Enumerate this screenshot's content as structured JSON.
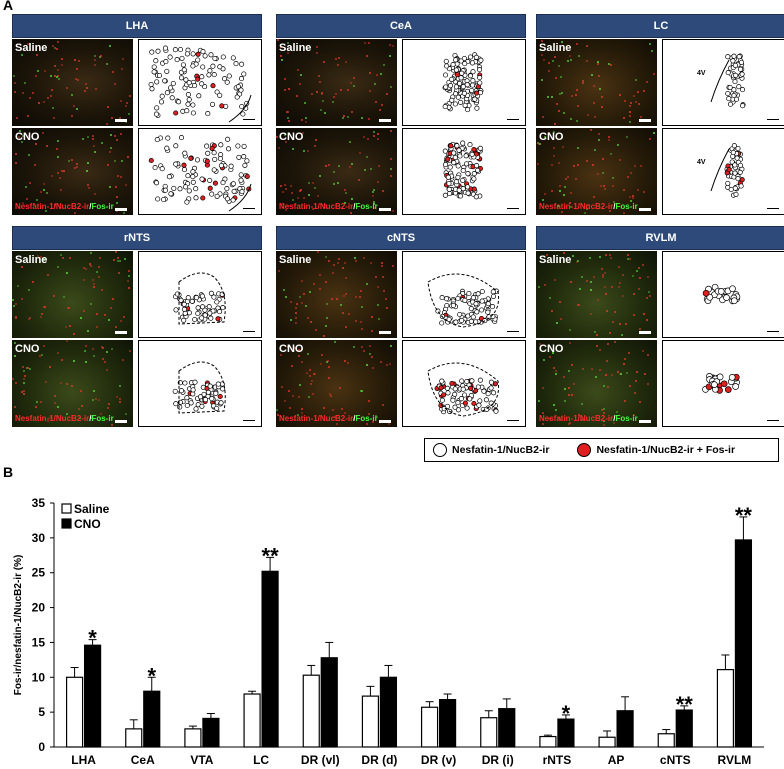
{
  "panel_a": {
    "letter": "A",
    "regions": [
      {
        "name": "LHA",
        "conditions": [
          "Saline",
          "CNO"
        ],
        "stain": {
          "part1": "Nesfatin-1/NucB2-ir",
          "sep": "/",
          "part2": "Fos-ir"
        }
      },
      {
        "name": "CeA",
        "conditions": [
          "Saline",
          "CNO"
        ],
        "stain": {
          "part1": "Nesfatin-1/NucB2-ir",
          "sep": "/",
          "part2": "Fos-ir"
        }
      },
      {
        "name": "LC",
        "conditions": [
          "Saline",
          "CNO"
        ],
        "stain": {
          "part1": "Nesfatin-1/NucB2-ir",
          "sep": "/",
          "part2": "Fos-ir"
        },
        "map_label": "4V"
      },
      {
        "name": "rNTS",
        "conditions": [
          "Saline",
          "CNO"
        ],
        "stain": {
          "part1": "Nesfatin-1/NucB2-ir",
          "sep": "/",
          "part2": "Fos-ir"
        }
      },
      {
        "name": "cNTS",
        "conditions": [
          "Saline",
          "CNO"
        ],
        "stain": {
          "part1": "Nesfatin-1/NucB2-ir",
          "sep": "/",
          "part2": "Fos-ir"
        }
      },
      {
        "name": "RVLM",
        "conditions": [
          "Saline",
          "CNO"
        ],
        "stain": {
          "part1": "Nesfatin-1/NucB2-ir",
          "sep": "/",
          "part2": "Fos-ir"
        }
      }
    ],
    "legend": {
      "open": "Nesfatin-1/NucB2-ir",
      "filled": "Nesfatin-1/NucB2-ir + Fos-ir",
      "filled_color": "#e02020"
    }
  },
  "panel_b": {
    "letter": "B"
  },
  "chart_data": {
    "type": "bar",
    "ylabel": "Fos-ir/nesfatin-1/NucB2-ir (%)",
    "xlabel": "",
    "ylim": [
      0,
      35
    ],
    "yticks": [
      0,
      5,
      10,
      15,
      20,
      25,
      30,
      35
    ],
    "legend_position": "top-left",
    "categories": [
      "LHA",
      "CeA",
      "VTA",
      "LC",
      "DR (vl)",
      "DR (d)",
      "DR (v)",
      "DR (i)",
      "rNTS",
      "AP",
      "cNTS",
      "RVLM"
    ],
    "series": [
      {
        "name": "Saline",
        "color": "#ffffff",
        "values": [
          10.0,
          2.6,
          2.6,
          7.6,
          10.3,
          7.3,
          5.7,
          4.2,
          1.5,
          1.4,
          1.9,
          11.1
        ],
        "errors": [
          1.4,
          1.3,
          0.4,
          0.4,
          1.4,
          1.4,
          0.8,
          1.0,
          0.2,
          0.9,
          0.6,
          2.1
        ]
      },
      {
        "name": "CNO",
        "color": "#000000",
        "values": [
          14.6,
          8.0,
          4.1,
          25.2,
          12.8,
          10.0,
          6.8,
          5.5,
          4.0,
          5.2,
          5.3,
          29.7
        ],
        "errors": [
          0.8,
          2.0,
          0.7,
          2.0,
          2.2,
          1.7,
          0.8,
          1.4,
          0.6,
          2.0,
          0.6,
          3.3
        ]
      }
    ],
    "significance": [
      "*",
      "*",
      "",
      "**",
      "",
      "",
      "",
      "",
      "*",
      "",
      "**",
      "**"
    ]
  }
}
